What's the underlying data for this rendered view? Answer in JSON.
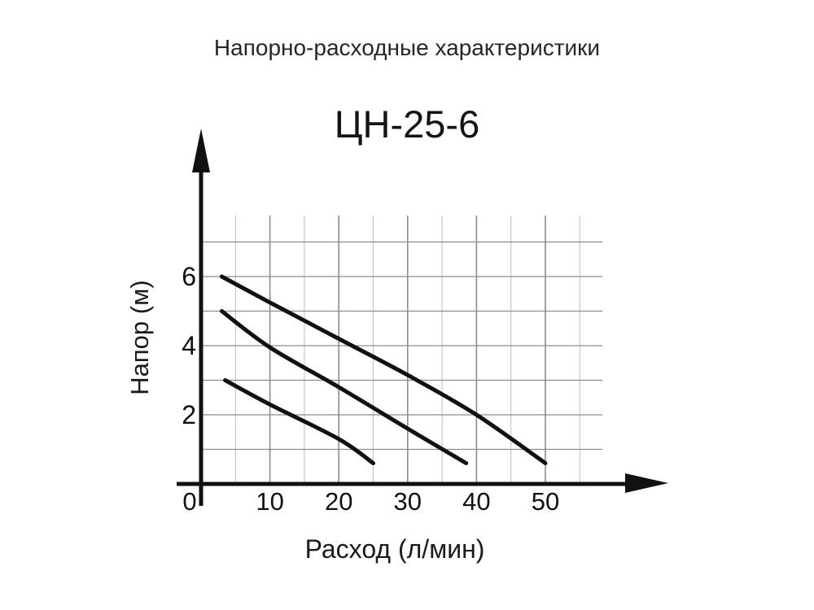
{
  "figure": {
    "title": "Напорно-расходные характеристики",
    "background": "#ffffff",
    "text_color": "#1f1f1f"
  },
  "chart_data": {
    "type": "line",
    "title": "ЦН-25-6",
    "subtitle_of": "Напорно-расходные характеристики",
    "xlabel": "Расход (л/мин)",
    "ylabel": "Напор (м)",
    "xlim": [
      0,
      58
    ],
    "ylim": [
      0,
      7.8
    ],
    "x_ticks": [
      0,
      10,
      20,
      30,
      40,
      50
    ],
    "y_ticks": [
      2,
      4,
      6
    ],
    "grid": {
      "on": true,
      "x_step": 5,
      "y_step": 1,
      "major_color": "#8c8c8c",
      "minor_color": "#c3c3c3"
    },
    "legend": "none",
    "axis_color": "#111111",
    "curve_color": "#111111",
    "series": [
      {
        "name": "curve-1",
        "points": [
          [
            3,
            6
          ],
          [
            10,
            5.25
          ],
          [
            20,
            4.2
          ],
          [
            30,
            3.15
          ],
          [
            40,
            2.0
          ],
          [
            50,
            0.6
          ]
        ]
      },
      {
        "name": "curve-2",
        "points": [
          [
            3,
            5
          ],
          [
            10,
            3.95
          ],
          [
            20,
            2.8
          ],
          [
            30,
            1.6
          ],
          [
            38.5,
            0.6
          ]
        ]
      },
      {
        "name": "curve-3",
        "points": [
          [
            3.5,
            3
          ],
          [
            10,
            2.3
          ],
          [
            20,
            1.3
          ],
          [
            25,
            0.6
          ]
        ]
      }
    ]
  }
}
